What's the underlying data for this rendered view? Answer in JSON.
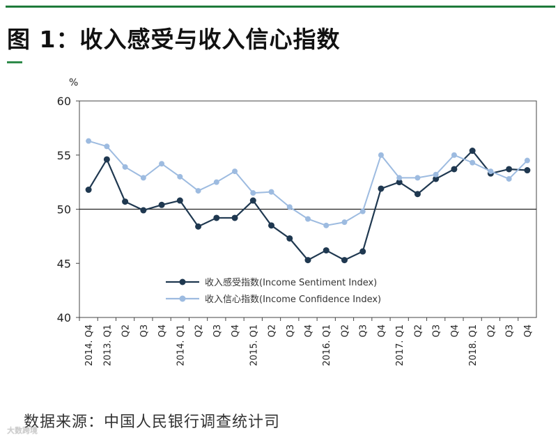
{
  "header": {
    "title": "图 1：收入感受与收入信心指数"
  },
  "footer": {
    "source": "数据来源：中国人民银行调查统计司",
    "watermark": "大数跨境"
  },
  "colors": {
    "accent": "#1e7a3a",
    "series_dark": "#1f3850",
    "series_light": "#9dbbe0"
  },
  "chart_data": {
    "type": "line",
    "title": "",
    "ylabel": "%",
    "ylim": [
      40,
      60
    ],
    "yticks": [
      40,
      45,
      50,
      55,
      60
    ],
    "reference_line": 50,
    "legend_position": "center-right",
    "categories": [
      "2014. Q4",
      "2013. Q1",
      "Q2",
      "Q3",
      "Q4",
      "2014. Q1",
      "Q2",
      "Q3",
      "Q4",
      "2015. Q1",
      "Q2",
      "Q3",
      "Q4",
      "2016. Q1",
      "Q2",
      "Q3",
      "Q4",
      "2017. Q1",
      "Q2",
      "Q3",
      "Q4",
      "2018. Q1",
      "Q2",
      "Q3",
      "Q4"
    ],
    "series": [
      {
        "name": "收入感受指数(Income Sentiment Index)",
        "color": "#1f3850",
        "values": [
          51.8,
          54.6,
          50.7,
          49.9,
          50.4,
          50.8,
          48.4,
          49.2,
          49.2,
          50.8,
          48.5,
          47.3,
          45.3,
          46.2,
          45.3,
          46.1,
          51.9,
          52.5,
          51.4,
          52.8,
          53.7,
          55.4,
          53.3,
          53.7,
          53.6
        ]
      },
      {
        "name": "收入信心指数(Income Confidence Index)",
        "color": "#9dbbe0",
        "values": [
          56.3,
          55.8,
          53.9,
          52.9,
          54.2,
          53.0,
          51.7,
          52.5,
          53.5,
          51.5,
          51.6,
          50.2,
          49.1,
          48.5,
          48.8,
          49.8,
          55.0,
          52.9,
          52.9,
          53.2,
          55.0,
          54.3,
          53.5,
          52.8,
          54.5
        ]
      }
    ]
  }
}
